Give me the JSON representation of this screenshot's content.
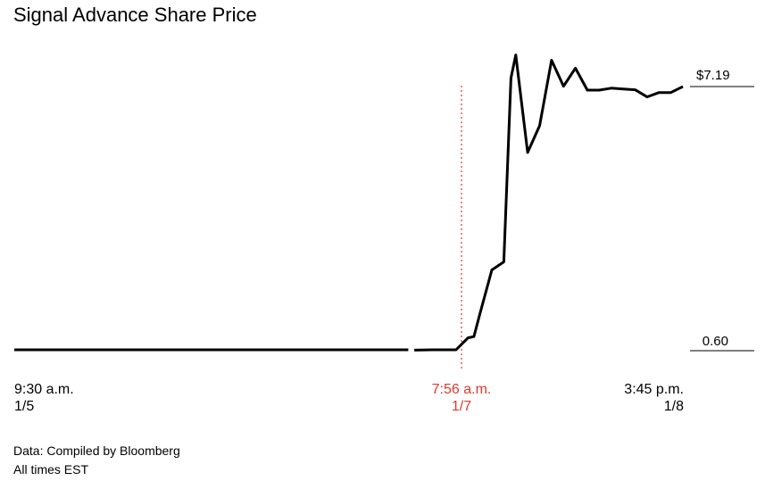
{
  "title": "Signal Advance Share Price",
  "x_axis": {
    "left": {
      "time": "9:30 a.m.",
      "date": "1/5"
    },
    "marker": {
      "time": "7:56 a.m.",
      "date": "1/7"
    },
    "right": {
      "time": "3:45 p.m.",
      "date": "1/8"
    }
  },
  "y_axis": {
    "top_label": "$7.19",
    "bottom_label": "0.60"
  },
  "colors": {
    "line": "#000000",
    "marker": "#e2382c",
    "reference": "#000000"
  },
  "footer": {
    "source": "Data: Compiled by Bloomberg",
    "note": "All times EST"
  },
  "chart_data": {
    "type": "line",
    "title": "Signal Advance Share Price",
    "x_labels": [
      "9:30 a.m. 1/5",
      "7:56 a.m. 1/7",
      "3:45 p.m. 1/8"
    ],
    "ylim": [
      0.6,
      7.19
    ],
    "reference_lines": [
      7.19,
      0.6
    ],
    "marker_label": "7:56 a.m. 1/7",
    "grid": false,
    "legend": "none",
    "series": [
      {
        "x": [
          0,
          33,
          33.5,
          35,
          37,
          38,
          38.5,
          39,
          40,
          41,
          41.6,
          42,
          43,
          44,
          45,
          46,
          47,
          48,
          49,
          50,
          51,
          52,
          53,
          54,
          55,
          56
        ],
        "y": [
          0.6,
          0.6,
          0.59,
          0.6,
          0.6,
          0.9,
          0.93,
          1.5,
          2.6,
          2.8,
          7.4,
          7.98,
          5.54,
          6.21,
          7.85,
          7.2,
          7.65,
          7.1,
          7.1,
          7.15,
          7.13,
          7.11,
          6.93,
          7.04,
          7.04,
          7.19
        ]
      }
    ]
  }
}
